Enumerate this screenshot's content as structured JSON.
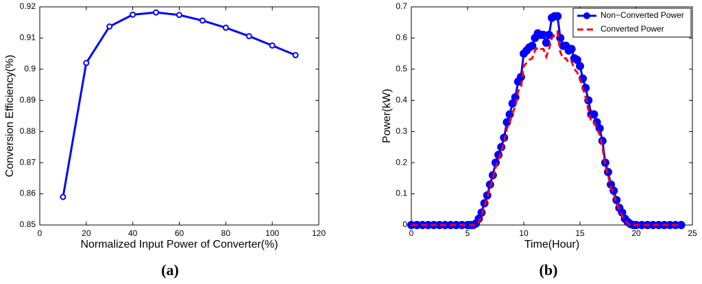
{
  "chart_data": [
    {
      "type": "line",
      "caption": "(a)",
      "xlabel": "Normalized Input Power of Converter(%)",
      "ylabel": "Conversion Efficiency(%)",
      "x": [
        10,
        20,
        30,
        40,
        50,
        60,
        70,
        80,
        90,
        100,
        110
      ],
      "values": [
        0.859,
        0.902,
        0.9137,
        0.9175,
        0.9182,
        0.9174,
        0.9156,
        0.9133,
        0.9106,
        0.9076,
        0.9045
      ],
      "color": "#0000ff",
      "xlim": [
        0,
        120
      ],
      "xticks": [
        0,
        20,
        40,
        60,
        80,
        100,
        120
      ],
      "ylim": [
        0.85,
        0.92
      ],
      "yticks": [
        0.85,
        0.86,
        0.87,
        0.88,
        0.89,
        0.9,
        0.91,
        0.92
      ]
    },
    {
      "type": "line",
      "caption": "(b)",
      "xlabel": "Time(Hour)",
      "ylabel": "Power(kW)",
      "legend": "upper right",
      "x": [
        0,
        0.5,
        1,
        1.5,
        2,
        2.5,
        3,
        3.5,
        4,
        4.5,
        5,
        5.25,
        5.5,
        5.75,
        6,
        6.25,
        6.5,
        6.75,
        7,
        7.25,
        7.5,
        7.75,
        8,
        8.25,
        8.5,
        8.75,
        9,
        9.25,
        9.5,
        9.75,
        10,
        10.25,
        10.5,
        10.75,
        11,
        11.25,
        11.5,
        11.75,
        12,
        12.25,
        12.5,
        12.75,
        13,
        13.25,
        13.5,
        13.75,
        14,
        14.25,
        14.5,
        14.75,
        15,
        15.25,
        15.5,
        15.75,
        16,
        16.25,
        16.5,
        16.75,
        17,
        17.25,
        17.5,
        17.75,
        18,
        18.25,
        18.5,
        18.75,
        19,
        19.25,
        19.5,
        19.75,
        20,
        20.5,
        21,
        21.5,
        22,
        22.5,
        23,
        23.5,
        24
      ],
      "series": [
        {
          "name": "Non−Converted Power",
          "color": "#0000ff",
          "values": [
            0,
            0,
            0,
            0,
            0,
            0,
            0,
            0,
            0,
            0,
            0,
            0,
            0,
            0.005,
            0.02,
            0.04,
            0.07,
            0.095,
            0.13,
            0.16,
            0.2,
            0.225,
            0.25,
            0.28,
            0.33,
            0.355,
            0.39,
            0.41,
            0.46,
            0.475,
            0.55,
            0.56,
            0.57,
            0.575,
            0.6,
            0.615,
            0.61,
            0.61,
            0.585,
            0.61,
            0.665,
            0.67,
            0.67,
            0.6,
            0.575,
            0.575,
            0.56,
            0.565,
            0.535,
            0.53,
            0.51,
            0.47,
            0.44,
            0.4,
            0.355,
            0.355,
            0.33,
            0.31,
            0.27,
            0.2,
            0.17,
            0.13,
            0.11,
            0.08,
            0.055,
            0.04,
            0.02,
            0.01,
            0.003,
            0,
            0,
            0,
            0,
            0,
            0,
            0,
            0,
            0,
            0
          ]
        },
        {
          "name": "Converted Power",
          "color": "#ff0000",
          "values": [
            0,
            0,
            0,
            0,
            0,
            0,
            0,
            0,
            0,
            0,
            0,
            0,
            0,
            0,
            0.01,
            0.03,
            0.06,
            0.085,
            0.12,
            0.15,
            0.185,
            0.21,
            0.235,
            0.265,
            0.31,
            0.33,
            0.36,
            0.38,
            0.43,
            0.44,
            0.51,
            0.52,
            0.53,
            0.535,
            0.56,
            0.57,
            0.565,
            0.565,
            0.54,
            0.565,
            0.6,
            0.61,
            0.62,
            0.555,
            0.535,
            0.535,
            0.52,
            0.525,
            0.5,
            0.49,
            0.47,
            0.44,
            0.41,
            0.37,
            0.33,
            0.33,
            0.31,
            0.29,
            0.25,
            0.19,
            0.16,
            0.12,
            0.1,
            0.07,
            0.05,
            0.03,
            0.015,
            0.005,
            0,
            0,
            0,
            0,
            0,
            0,
            0,
            0,
            0,
            0,
            0
          ]
        }
      ],
      "xlim": [
        0,
        25
      ],
      "xticks": [
        0,
        5,
        10,
        15,
        20,
        25
      ],
      "ylim": [
        0,
        0.7
      ],
      "yticks": [
        0,
        0.1,
        0.2,
        0.3,
        0.4,
        0.5,
        0.6,
        0.7
      ]
    }
  ]
}
